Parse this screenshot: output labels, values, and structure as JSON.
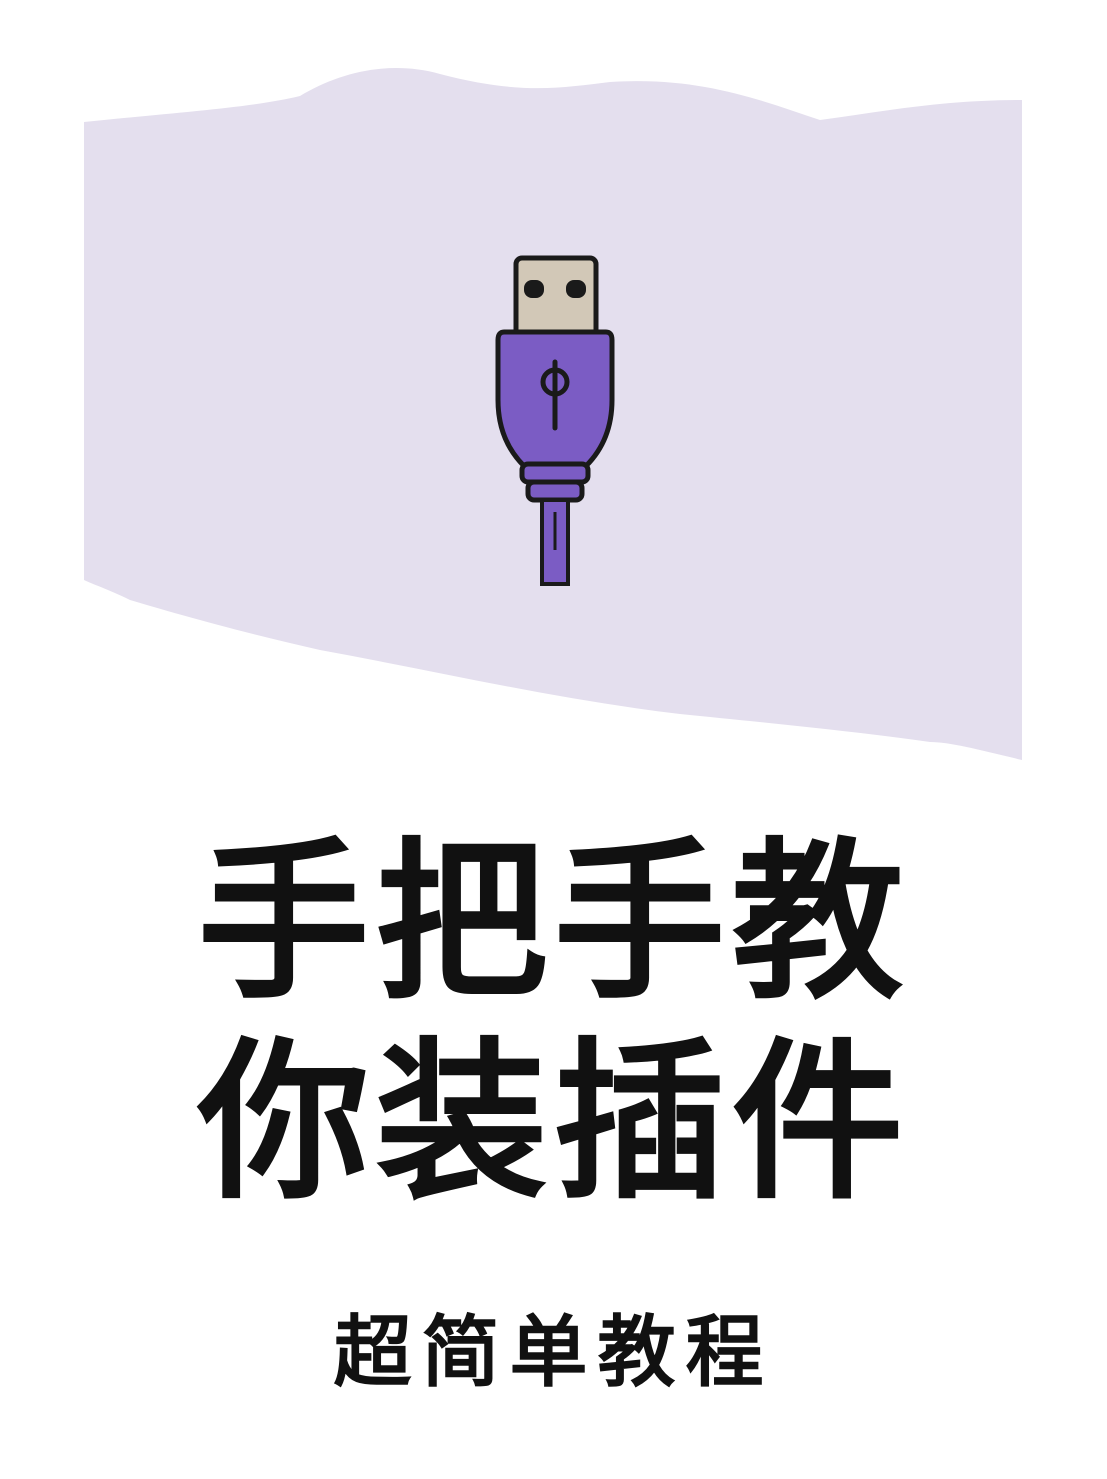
{
  "banner": {
    "color": "#e4dfee",
    "icon": "usb-plug-icon",
    "icon_colors": {
      "plug_body": "#7b5cc4",
      "connector": "#d2c8b7",
      "outline": "#1a1a1a"
    }
  },
  "title": {
    "line1": "手把手教",
    "line2": "你装插件"
  },
  "subtitle": "超简单教程"
}
